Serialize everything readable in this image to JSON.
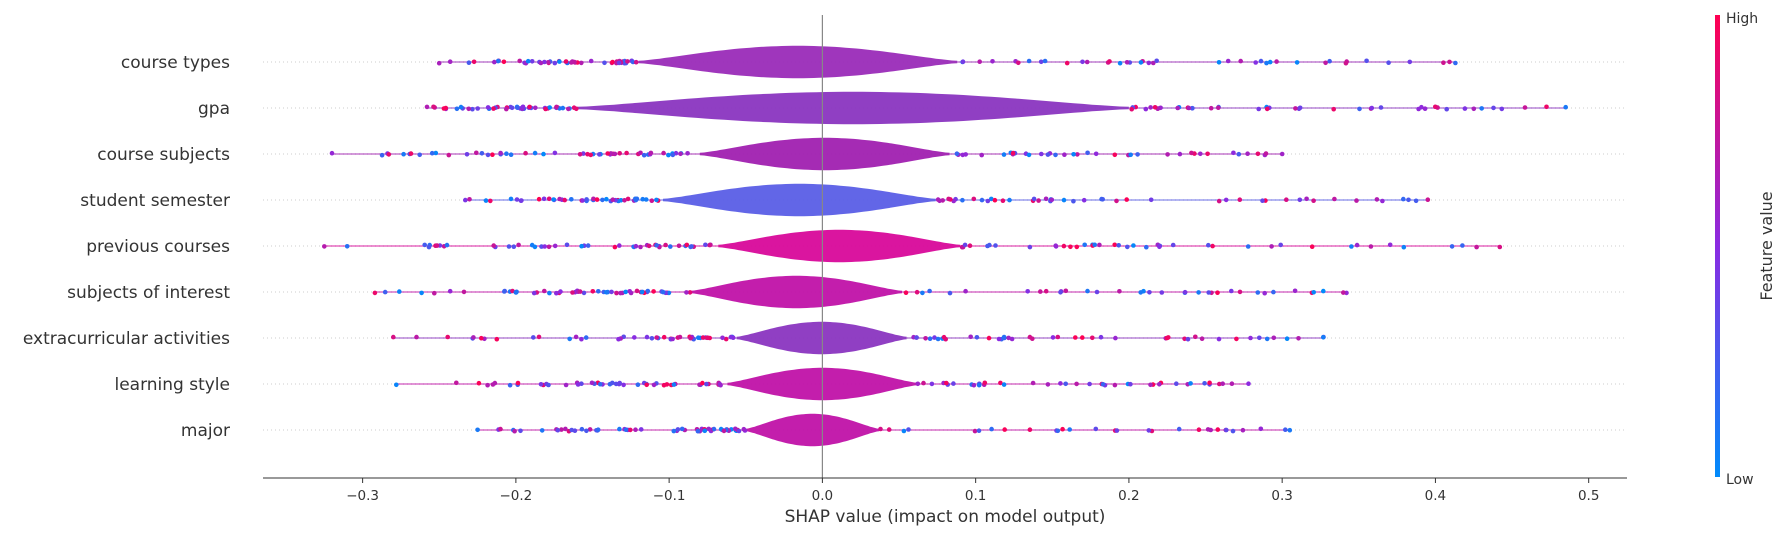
{
  "chart_data": {
    "type": "scatter",
    "variant": "violin-beeswarm",
    "xlabel": "SHAP value (impact on model output)",
    "xlim": [
      -0.365,
      0.525
    ],
    "xticks": [
      -0.3,
      -0.2,
      -0.1,
      0.0,
      0.1,
      0.2,
      0.3,
      0.4,
      0.5
    ],
    "xtick_labels": [
      "−0.3",
      "−0.2",
      "−0.1",
      "0.0",
      "0.1",
      "0.2",
      "0.3",
      "0.4",
      "0.5"
    ],
    "features": [
      {
        "name": "course types",
        "min": -0.25,
        "max": 0.413,
        "left_spread": -0.12,
        "right_spread": 0.088,
        "violin_color": "#9a2bb8"
      },
      {
        "name": "gpa",
        "min": -0.258,
        "max": 0.485,
        "left_spread": -0.16,
        "right_spread": 0.2,
        "violin_color": "#8a35c0"
      },
      {
        "name": "course subjects",
        "min": -0.32,
        "max": 0.3,
        "left_spread": -0.08,
        "right_spread": 0.083,
        "violin_color": "#a020b0"
      },
      {
        "name": "student semester",
        "min": -0.233,
        "max": 0.395,
        "left_spread": -0.104,
        "right_spread": 0.074,
        "violin_color": "#5a5ee6"
      },
      {
        "name": "previous courses",
        "min": -0.325,
        "max": 0.442,
        "left_spread": -0.068,
        "right_spread": 0.09,
        "violin_color": "#d8089a"
      },
      {
        "name": "subjects of interest",
        "min": -0.292,
        "max": 0.342,
        "left_spread": -0.086,
        "right_spread": 0.052,
        "violin_color": "#c012a8"
      },
      {
        "name": "extracurricular activities",
        "min": -0.28,
        "max": 0.327,
        "left_spread": -0.056,
        "right_spread": 0.055,
        "violin_color": "#8a35c0"
      },
      {
        "name": "learning style",
        "min": -0.278,
        "max": 0.278,
        "left_spread": -0.062,
        "right_spread": 0.062,
        "violin_color": "#c012a8"
      },
      {
        "name": "major",
        "min": -0.225,
        "max": 0.305,
        "left_spread": -0.05,
        "right_spread": 0.037,
        "violin_color": "#c012a8"
      }
    ],
    "colorbar": {
      "title": "Feature value",
      "high_label": "High",
      "low_label": "Low",
      "high_color": "#ff0052",
      "mid_color": "#8a2be2",
      "low_color": "#008bfb"
    },
    "grid": false,
    "legend": "colorbar-right"
  }
}
